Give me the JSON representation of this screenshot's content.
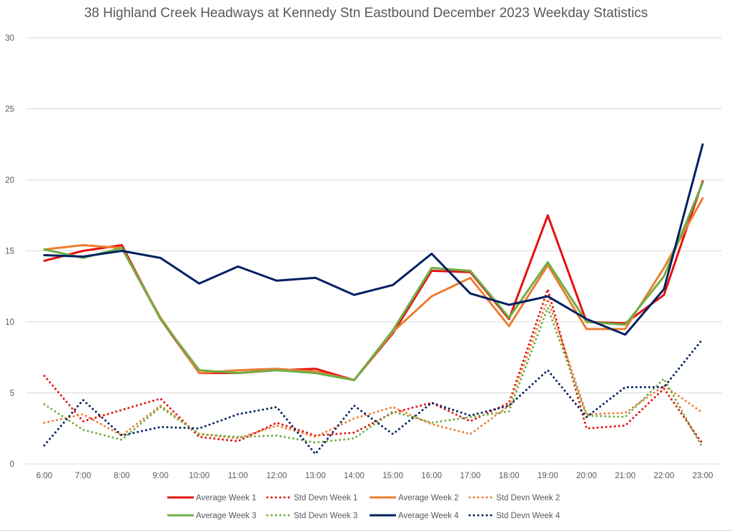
{
  "chart_data": {
    "type": "line",
    "title": "38 Highland Creek Headways at Kennedy Stn Eastbound December 2023 Weekday Statistics",
    "xlabel": "",
    "ylabel": "",
    "ylim": [
      0,
      30
    ],
    "yticks": [
      0,
      5,
      10,
      15,
      20,
      25,
      30
    ],
    "grid": true,
    "legend_position": "bottom",
    "categories": [
      "6:00",
      "7:00",
      "8:00",
      "9:00",
      "10:00",
      "11:00",
      "12:00",
      "13:00",
      "14:00",
      "15:00",
      "16:00",
      "17:00",
      "18:00",
      "19:00",
      "20:00",
      "21:00",
      "22:00",
      "23:00"
    ],
    "series": [
      {
        "name": "Average Week 1",
        "color": "#e3120b",
        "style": "solid",
        "values": [
          14.3,
          15.0,
          15.4,
          10.2,
          6.4,
          6.4,
          6.6,
          6.7,
          5.9,
          9.2,
          13.6,
          13.5,
          10.2,
          17.5,
          10.0,
          9.9,
          11.9,
          19.9
        ]
      },
      {
        "name": "Std Devn Week 1",
        "color": "#e3120b",
        "style": "dotted",
        "values": [
          6.2,
          3.0,
          3.8,
          4.6,
          1.9,
          1.6,
          2.9,
          2.0,
          2.2,
          3.6,
          4.3,
          3.0,
          4.3,
          12.3,
          2.5,
          2.7,
          5.3,
          1.4
        ]
      },
      {
        "name": "Average Week 2",
        "color": "#ed7d31",
        "style": "solid",
        "values": [
          15.1,
          15.4,
          15.2,
          10.3,
          6.4,
          6.6,
          6.7,
          6.5,
          5.9,
          9.3,
          11.8,
          13.1,
          9.7,
          14.0,
          9.5,
          9.5,
          13.8,
          18.7
        ]
      },
      {
        "name": "Std Devn Week 2",
        "color": "#ed7d31",
        "style": "dotted",
        "values": [
          2.9,
          3.5,
          2.0,
          4.1,
          2.1,
          1.8,
          2.7,
          1.9,
          3.2,
          4.0,
          2.8,
          2.1,
          4.1,
          11.6,
          3.5,
          3.6,
          5.5,
          3.6
        ]
      },
      {
        "name": "Average Week 3",
        "color": "#70ad47",
        "style": "solid",
        "values": [
          15.1,
          14.5,
          15.2,
          10.2,
          6.6,
          6.4,
          6.6,
          6.4,
          5.9,
          9.4,
          13.8,
          13.6,
          10.3,
          14.2,
          10.0,
          9.8,
          13.2,
          19.8
        ]
      },
      {
        "name": "Std Devn Week 3",
        "color": "#70ad47",
        "style": "dotted",
        "values": [
          4.2,
          2.4,
          1.7,
          4.0,
          2.1,
          1.9,
          2.0,
          1.5,
          1.8,
          3.7,
          2.9,
          3.3,
          3.7,
          11.0,
          3.4,
          3.3,
          6.0,
          1.1
        ]
      },
      {
        "name": "Average Week 4",
        "color": "#002060",
        "style": "solid",
        "values": [
          14.7,
          14.6,
          15.0,
          14.5,
          12.7,
          13.9,
          12.9,
          13.1,
          11.9,
          12.6,
          14.8,
          12.0,
          11.2,
          11.8,
          10.2,
          9.1,
          12.3,
          22.5
        ]
      },
      {
        "name": "Std Devn Week 4",
        "color": "#002060",
        "style": "dotted",
        "values": [
          1.3,
          4.5,
          2.0,
          2.6,
          2.5,
          3.5,
          4.0,
          0.7,
          4.1,
          2.1,
          4.3,
          3.4,
          4.1,
          6.6,
          3.3,
          5.4,
          5.4,
          8.8
        ]
      }
    ]
  }
}
